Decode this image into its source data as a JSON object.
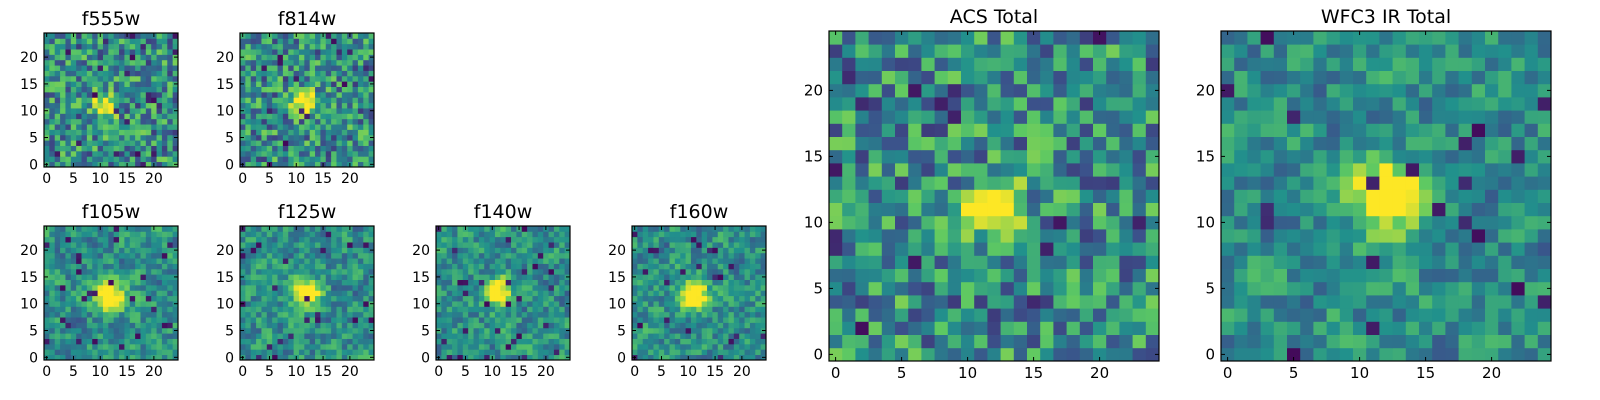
{
  "chart_data": [
    {
      "type": "heatmap",
      "title": "f555w",
      "xlim": [
        0,
        24
      ],
      "ylim": [
        0,
        24
      ],
      "xticks": [
        "0",
        "5",
        "10",
        "15",
        "20"
      ],
      "yticks": [
        "0",
        "5",
        "10",
        "15",
        "20"
      ],
      "source_peak": [
        11,
        11
      ]
    },
    {
      "type": "heatmap",
      "title": "f814w",
      "xlim": [
        0,
        24
      ],
      "ylim": [
        0,
        24
      ],
      "xticks": [
        "0",
        "5",
        "10",
        "15",
        "20"
      ],
      "yticks": [
        "0",
        "5",
        "10",
        "15",
        "20"
      ],
      "source_peak": [
        11,
        12
      ]
    },
    {
      "type": "heatmap",
      "title": "f105w",
      "xlim": [
        0,
        24
      ],
      "ylim": [
        0,
        24
      ],
      "xticks": [
        "0",
        "5",
        "10",
        "15",
        "20"
      ],
      "yticks": [
        "0",
        "5",
        "10",
        "15",
        "20"
      ],
      "source_peak": [
        12,
        11
      ]
    },
    {
      "type": "heatmap",
      "title": "f125w",
      "xlim": [
        0,
        24
      ],
      "ylim": [
        0,
        24
      ],
      "xticks": [
        "0",
        "5",
        "10",
        "15",
        "20"
      ],
      "yticks": [
        "0",
        "5",
        "10",
        "15",
        "20"
      ],
      "source_peak": [
        12,
        12
      ]
    },
    {
      "type": "heatmap",
      "title": "f140w",
      "xlim": [
        0,
        24
      ],
      "ylim": [
        0,
        24
      ],
      "xticks": [
        "0",
        "5",
        "10",
        "15",
        "20"
      ],
      "yticks": [
        "0",
        "5",
        "10",
        "15",
        "20"
      ],
      "source_peak": [
        11,
        12
      ]
    },
    {
      "type": "heatmap",
      "title": "f160w",
      "xlim": [
        0,
        24
      ],
      "ylim": [
        0,
        24
      ],
      "xticks": [
        "0",
        "5",
        "10",
        "15",
        "20"
      ],
      "yticks": [
        "0",
        "5",
        "10",
        "15",
        "20"
      ],
      "source_peak": [
        11,
        12
      ]
    },
    {
      "type": "heatmap",
      "title": "ACS Total",
      "xlim": [
        0,
        24
      ],
      "ylim": [
        0,
        24
      ],
      "xticks": [
        "0",
        "5",
        "10",
        "15",
        "20"
      ],
      "yticks": [
        "0",
        "5",
        "10",
        "15",
        "20"
      ],
      "source_peak": [
        12,
        11
      ]
    },
    {
      "type": "heatmap",
      "title": "WFC3 IR Total",
      "xlim": [
        0,
        24
      ],
      "ylim": [
        0,
        24
      ],
      "xticks": [
        "0",
        "5",
        "10",
        "15",
        "20"
      ],
      "yticks": [
        "0",
        "5",
        "10",
        "15",
        "20"
      ],
      "source_peak": [
        12,
        12
      ]
    }
  ],
  "colormap": [
    "#440154",
    "#3b528b",
    "#21918c",
    "#5ec962",
    "#fde725"
  ]
}
